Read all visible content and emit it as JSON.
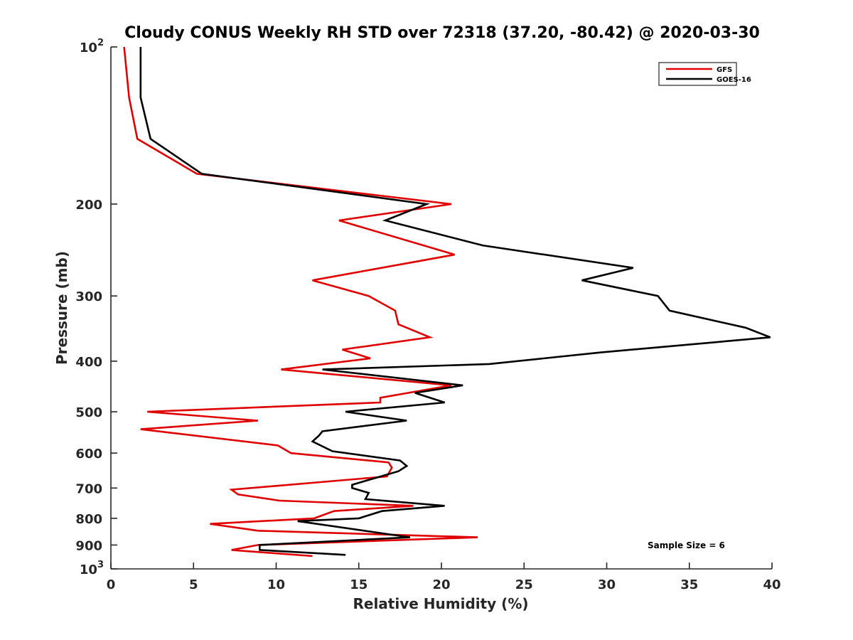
{
  "chart_data": {
    "type": "line",
    "orientation": "profile (x = value, y = pressure level, log scale, reversed)",
    "title": "Cloudy CONUS Weekly RH STD over 72318 (37.20, -80.42) @ 2020-03-30",
    "xlabel": "Relative Humidity (%)",
    "ylabel": "Pressure (mb)",
    "xlim": [
      0,
      40
    ],
    "ylim": [
      100,
      1000
    ],
    "yscale": "log",
    "yreversed": true,
    "x_ticks": [
      0,
      5,
      10,
      15,
      20,
      25,
      30,
      35,
      40
    ],
    "x_tick_labels": [
      "0",
      "5",
      "10",
      "15",
      "20",
      "25",
      "30",
      "35",
      "40"
    ],
    "y_ticks": [
      100,
      200,
      300,
      400,
      500,
      600,
      700,
      800,
      900,
      1000
    ],
    "y_tick_labels": [
      {
        "base": "10",
        "sup": "2"
      },
      {
        "base": "200",
        "sup": ""
      },
      {
        "base": "300",
        "sup": ""
      },
      {
        "base": "400",
        "sup": ""
      },
      {
        "base": "500",
        "sup": ""
      },
      {
        "base": "600",
        "sup": ""
      },
      {
        "base": "700",
        "sup": ""
      },
      {
        "base": "800",
        "sup": ""
      },
      {
        "base": "900",
        "sup": ""
      },
      {
        "base": "10",
        "sup": "3"
      }
    ],
    "grid": false,
    "legend_position": "top-right",
    "annotation": "Sample Size = 6",
    "series": [
      {
        "name": "GFS",
        "color": "#e00000",
        "points": [
          [
            0.8,
            100
          ],
          [
            1.1,
            125
          ],
          [
            1.6,
            150
          ],
          [
            5.2,
            175
          ],
          [
            20.6,
            200
          ],
          [
            13.8,
            215
          ],
          [
            20.8,
            250
          ],
          [
            12.2,
            280
          ],
          [
            15.6,
            300
          ],
          [
            17.2,
            320
          ],
          [
            17.4,
            340
          ],
          [
            19.3,
            360
          ],
          [
            14.0,
            380
          ],
          [
            15.7,
            395
          ],
          [
            10.3,
            415
          ],
          [
            20.6,
            445
          ],
          [
            16.3,
            470
          ],
          [
            16.3,
            480
          ],
          [
            2.2,
            500
          ],
          [
            8.9,
            520
          ],
          [
            1.8,
            540
          ],
          [
            10.1,
            580
          ],
          [
            10.9,
            600
          ],
          [
            16.8,
            625
          ],
          [
            17.0,
            640
          ],
          [
            16.7,
            665
          ],
          [
            7.3,
            705
          ],
          [
            7.7,
            720
          ],
          [
            10.2,
            740
          ],
          [
            18.3,
            757
          ],
          [
            13.5,
            775
          ],
          [
            12.3,
            800
          ],
          [
            6.0,
            820
          ],
          [
            8.9,
            845
          ],
          [
            22.2,
            870
          ],
          [
            8.9,
            900
          ],
          [
            7.3,
            920
          ],
          [
            12.2,
            945
          ]
        ]
      },
      {
        "name": "GOES-16",
        "color": "#000000",
        "points": [
          [
            1.8,
            100
          ],
          [
            1.8,
            125
          ],
          [
            2.4,
            150
          ],
          [
            5.5,
            175
          ],
          [
            19.1,
            200
          ],
          [
            16.6,
            215
          ],
          [
            22.5,
            240
          ],
          [
            31.6,
            265
          ],
          [
            28.5,
            280
          ],
          [
            33.1,
            300
          ],
          [
            33.8,
            320
          ],
          [
            38.4,
            345
          ],
          [
            39.9,
            360
          ],
          [
            29.6,
            385
          ],
          [
            22.9,
            405
          ],
          [
            12.8,
            415
          ],
          [
            21.3,
            445
          ],
          [
            18.4,
            460
          ],
          [
            20.2,
            480
          ],
          [
            14.2,
            500
          ],
          [
            17.9,
            520
          ],
          [
            12.8,
            545
          ],
          [
            12.6,
            555
          ],
          [
            12.2,
            570
          ],
          [
            13.4,
            595
          ],
          [
            17.5,
            620
          ],
          [
            17.9,
            635
          ],
          [
            17.4,
            650
          ],
          [
            14.6,
            690
          ],
          [
            14.6,
            700
          ],
          [
            15.6,
            715
          ],
          [
            15.4,
            735
          ],
          [
            20.2,
            757
          ],
          [
            16.4,
            775
          ],
          [
            15.0,
            800
          ],
          [
            11.3,
            810
          ],
          [
            18.1,
            870
          ],
          [
            9.0,
            900
          ],
          [
            9.0,
            920
          ],
          [
            14.2,
            940
          ]
        ]
      }
    ]
  }
}
